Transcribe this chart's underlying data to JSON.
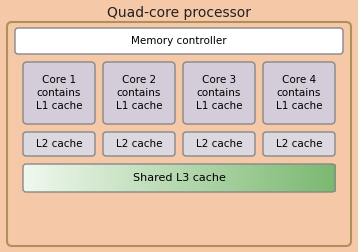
{
  "title": "Quad-core processor",
  "bg_color": "#f5c8a8",
  "outer_border_color": "#b0905a",
  "memory_controller_label": "Memory controller",
  "memory_controller_bg": "#ffffff",
  "memory_controller_border": "#888888",
  "core_labels": [
    "Core 1\ncontains\nL1 cache",
    "Core 2\ncontains\nL1 cache",
    "Core 3\ncontains\nL1 cache",
    "Core 4\ncontains\nL1 cache"
  ],
  "core_bg": "#d4ccd8",
  "core_border": "#888888",
  "l2_labels": [
    "L2 cache",
    "L2 cache",
    "L2 cache",
    "L2 cache"
  ],
  "l2_bg": "#dcd8e0",
  "l2_border": "#888888",
  "l3_label": "Shared L3 cache",
  "l3_bg_left": "#f0f8ee",
  "l3_bg_right": "#7ab870",
  "l3_border": "#888888",
  "title_fontsize": 10,
  "label_fontsize": 7.5,
  "fig_w": 3.58,
  "fig_h": 2.52,
  "dpi": 100
}
